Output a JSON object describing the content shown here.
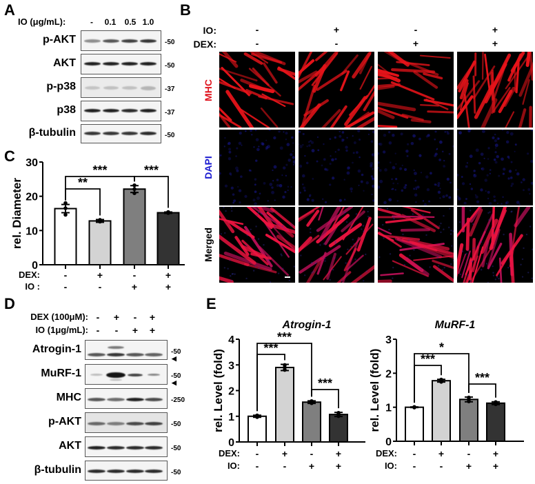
{
  "panels": {
    "A": {
      "letter": "A",
      "header_label": "IO (μg/mL):",
      "doses": [
        "-",
        "0.1",
        "0.5",
        "1.0"
      ],
      "blots": [
        {
          "protein": "p-AKT",
          "mw": "-50"
        },
        {
          "protein": "AKT",
          "mw": "-50"
        },
        {
          "protein": "p-p38",
          "mw": "-37"
        },
        {
          "protein": "p38",
          "mw": "-37"
        },
        {
          "protein": "β-tubulin",
          "mw": "-50"
        }
      ]
    },
    "B": {
      "letter": "B",
      "cond_labels": {
        "io": "IO:",
        "dex": "DEX:"
      },
      "io": [
        "-",
        "+",
        "-",
        "+"
      ],
      "dex": [
        "-",
        "-",
        "+",
        "+"
      ],
      "rows": [
        {
          "label": "MHC",
          "color": "#e0141e"
        },
        {
          "label": "DAPI",
          "color": "#1a1ad0"
        },
        {
          "label": "Merged",
          "color": "#000000"
        }
      ]
    },
    "C": {
      "letter": "C",
      "cond_labels": {
        "dex": "DEX:",
        "io": "IO :"
      },
      "dex": [
        "-",
        "+",
        "-",
        "+"
      ],
      "io": [
        "-",
        "-",
        "+",
        "+"
      ]
    },
    "D": {
      "letter": "D",
      "dex_label": "DEX (100μM):",
      "io_label": "IO (1μg/mL):",
      "dex": [
        "-",
        "+",
        "-",
        "+"
      ],
      "io": [
        "-",
        "-",
        "+",
        "+"
      ],
      "blots": [
        {
          "protein": "Atrogin-1",
          "mw": "-50",
          "arrow": "◀"
        },
        {
          "protein": "MuRF-1",
          "mw": "-50",
          "arrow": "◀"
        },
        {
          "protein": "MHC",
          "mw": "-250",
          "arrow": ""
        },
        {
          "protein": "p-AKT",
          "mw": "-50",
          "arrow": ""
        },
        {
          "protein": "AKT",
          "mw": "-50",
          "arrow": ""
        },
        {
          "protein": "β-tubulin",
          "mw": "-50",
          "arrow": ""
        }
      ]
    },
    "E": {
      "letter": "E",
      "cond_labels": {
        "dex": "DEX:",
        "io": "IO:"
      },
      "dex": [
        "-",
        "+",
        "-",
        "+"
      ],
      "io": [
        "-",
        "-",
        "+",
        "+"
      ]
    }
  },
  "bar_colors": [
    "#ffffff",
    "#d3d3d3",
    "#7f7f7f",
    "#333333"
  ],
  "chart_data": [
    {
      "panel": "C",
      "type": "bar",
      "title": "",
      "xlabel": "",
      "ylabel": "rel. Diameter",
      "ylim": [
        0,
        30
      ],
      "yticks": [
        0,
        10,
        20,
        30
      ],
      "categories": [
        "DEX- IO-",
        "DEX+ IO-",
        "DEX- IO+",
        "DEX+ IO+"
      ],
      "values": [
        16.4,
        12.8,
        22.1,
        15.2
      ],
      "errors": [
        1.2,
        0.4,
        1.0,
        0.2
      ],
      "points": [
        [
          18.0,
          16.5,
          14.6
        ],
        [
          13.1,
          12.7,
          12.6
        ],
        [
          23.2,
          22.1,
          20.9
        ],
        [
          15.4,
          15.2,
          15.1
        ]
      ],
      "significance": [
        {
          "from": 0,
          "to": 1,
          "label": "**"
        },
        {
          "from": 0,
          "to": 2,
          "label": "***"
        },
        {
          "from": 2,
          "to": 3,
          "label": "***"
        }
      ],
      "grid": false,
      "legend": "none"
    },
    {
      "panel": "E",
      "type": "bar",
      "title": "Atrogin-1",
      "xlabel": "",
      "ylabel": "rel. Level (fold)",
      "ylim": [
        0,
        4
      ],
      "yticks": [
        0,
        1,
        2,
        3,
        4
      ],
      "categories": [
        "DEX- IO-",
        "DEX+ IO-",
        "DEX- IO+",
        "DEX+ IO+"
      ],
      "values": [
        1.0,
        2.9,
        1.55,
        1.07
      ],
      "errors": [
        0.04,
        0.12,
        0.05,
        0.08
      ],
      "significance": [
        {
          "from": 0,
          "to": 1,
          "label": "***"
        },
        {
          "from": 0,
          "to": 2,
          "label": "***"
        },
        {
          "from": 2,
          "to": 3,
          "label": "***"
        }
      ],
      "grid": false,
      "legend": "none"
    },
    {
      "panel": "E",
      "type": "bar",
      "title": "MuRF-1",
      "xlabel": "",
      "ylabel": "rel. Level (fold)",
      "ylim": [
        0,
        3
      ],
      "yticks": [
        0,
        1,
        2,
        3
      ],
      "categories": [
        "DEX- IO-",
        "DEX+ IO-",
        "DEX- IO+",
        "DEX+ IO+"
      ],
      "values": [
        1.0,
        1.78,
        1.23,
        1.12
      ],
      "errors": [
        0.01,
        0.04,
        0.07,
        0.04
      ],
      "significance": [
        {
          "from": 0,
          "to": 1,
          "label": "***"
        },
        {
          "from": 0,
          "to": 2,
          "label": "*"
        },
        {
          "from": 2,
          "to": 3,
          "label": "***"
        }
      ],
      "grid": false,
      "legend": "none"
    }
  ]
}
